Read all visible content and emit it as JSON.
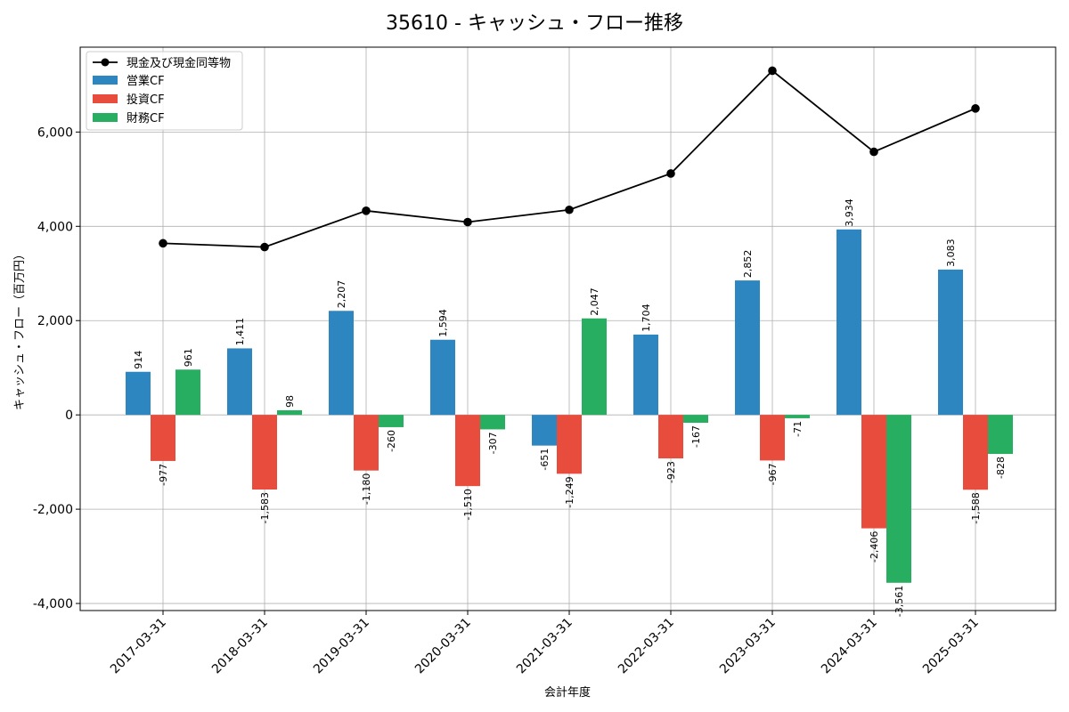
{
  "chart_data": {
    "type": "bar",
    "title": "35610 - キャッシュ・フロー推移",
    "xlabel": "会計年度",
    "ylabel": "キャッシュ・フロー（百万円）",
    "ylim": [
      -4150,
      7800
    ],
    "yticks": [
      -4000,
      -2000,
      0,
      2000,
      4000,
      6000
    ],
    "ytick_labels": [
      "-4,000",
      "-2,000",
      "0",
      "2,000",
      "4,000",
      "6,000"
    ],
    "grid": true,
    "legend_position": "top-left",
    "categories": [
      "2017-03-31",
      "2018-03-31",
      "2019-03-31",
      "2020-03-31",
      "2021-03-31",
      "2022-03-31",
      "2023-03-31",
      "2024-03-31",
      "2025-03-31"
    ],
    "series": [
      {
        "name": "営業CF",
        "color": "#2e86c1",
        "values": [
          914,
          1411,
          2207,
          1594,
          -651,
          1704,
          2852,
          3934,
          3083
        ],
        "labels": [
          "914",
          "1,411",
          "2,207",
          "1,594",
          "-651",
          "1,704",
          "2,852",
          "3,934",
          "3,083"
        ]
      },
      {
        "name": "投資CF",
        "color": "#e74c3c",
        "values": [
          -977,
          -1583,
          -1180,
          -1510,
          -1249,
          -923,
          -967,
          -2406,
          -1588
        ],
        "labels": [
          "-977",
          "-1,583",
          "-1,180",
          "-1,510",
          "-1,249",
          "-923",
          "-967",
          "-2,406",
          "-1,588"
        ]
      },
      {
        "name": "財務CF",
        "color": "#27ae60",
        "values": [
          961,
          98,
          -260,
          -307,
          2047,
          -167,
          -71,
          -3561,
          -828
        ],
        "labels": [
          "961",
          "98",
          "-260",
          "-307",
          "2,047",
          "-167",
          "-71",
          "-3,561",
          "-828"
        ]
      }
    ],
    "line_series": {
      "name": "現金及び現金同等物",
      "color": "#000000",
      "values": [
        3640,
        3560,
        4330,
        4090,
        4350,
        5120,
        7300,
        5580,
        6500
      ]
    },
    "legend_entries": [
      "現金及び現金同等物",
      "営業CF",
      "投資CF",
      "財務CF"
    ]
  }
}
